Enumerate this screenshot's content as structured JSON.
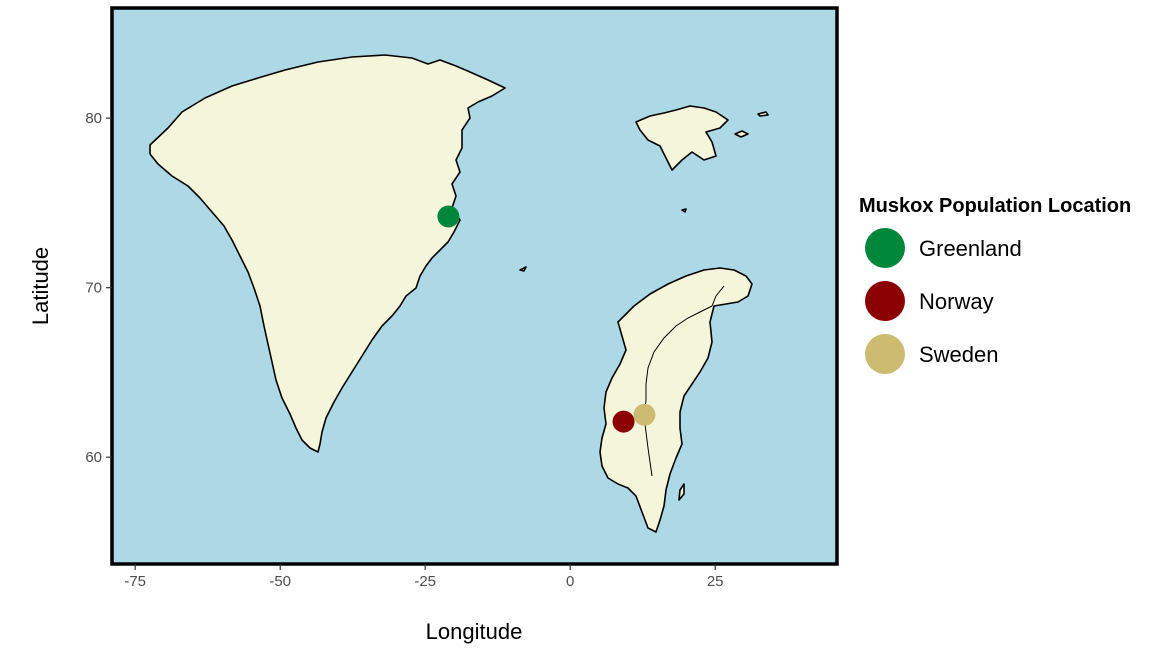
{
  "chart_data": {
    "type": "map",
    "xlabel": "Longitude",
    "ylabel": "Latitude",
    "xlim": [
      -79,
      46
    ],
    "ylim": [
      53.7,
      86.5
    ],
    "x_ticks": [
      -75,
      -50,
      -25,
      0,
      25
    ],
    "y_ticks": [
      60,
      70,
      80
    ],
    "background_color": "#add8e6",
    "land_color": "#f5f5dc",
    "regions": [
      "Greenland",
      "Svalbard",
      "Scandinavia"
    ],
    "legend": {
      "title": "Muskox Population Location",
      "placement": "right",
      "entries": [
        {
          "name": "Greenland",
          "color": "#00873c"
        },
        {
          "name": "Norway",
          "color": "#8b0000"
        },
        {
          "name": "Sweden",
          "color": "#cdbb72"
        }
      ]
    },
    "points": [
      {
        "name": "Greenland",
        "lon": -21,
        "lat": 74.2,
        "color": "#00873c"
      },
      {
        "name": "Norway",
        "lon": 9.2,
        "lat": 62.1,
        "color": "#8b0000"
      },
      {
        "name": "Sweden",
        "lon": 12.8,
        "lat": 62.5,
        "color": "#cdbb72"
      }
    ]
  }
}
